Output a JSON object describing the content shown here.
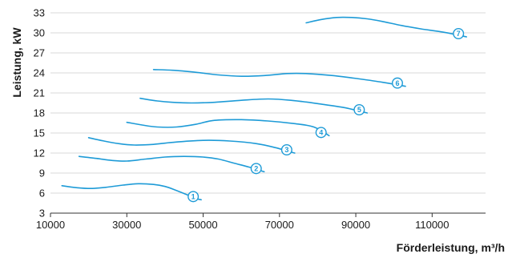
{
  "chart_data": {
    "type": "line",
    "title": "",
    "xlabel": "Förderleistung, m³/h",
    "ylabel": "Leistung, kW",
    "xlim": [
      10000,
      124000
    ],
    "ylim": [
      3,
      33
    ],
    "xticks": [
      10000,
      30000,
      50000,
      70000,
      90000,
      110000
    ],
    "yticks": [
      3,
      6,
      9,
      12,
      15,
      18,
      21,
      24,
      27,
      30,
      33
    ],
    "grid": "horizontal",
    "line_color": "#1e9bd7",
    "series": [
      {
        "name": "1",
        "x": [
          13000,
          17000,
          21000,
          25000,
          29000,
          33000,
          37000,
          40000,
          43000,
          46000,
          48000,
          49500
        ],
        "y": [
          7.1,
          6.8,
          6.7,
          6.9,
          7.2,
          7.4,
          7.3,
          7.0,
          6.4,
          5.7,
          5.2,
          5.0
        ]
      },
      {
        "name": "2",
        "x": [
          17500,
          22000,
          26000,
          30000,
          35000,
          40000,
          45000,
          50000,
          54000,
          58000,
          62000,
          66000
        ],
        "y": [
          11.5,
          11.2,
          10.9,
          10.8,
          11.1,
          11.4,
          11.5,
          11.4,
          11.1,
          10.5,
          9.9,
          9.2
        ]
      },
      {
        "name": "3",
        "x": [
          20000,
          24000,
          28000,
          32000,
          37000,
          42000,
          50000,
          57000,
          64000,
          69000,
          74000
        ],
        "y": [
          14.3,
          13.8,
          13.4,
          13.2,
          13.3,
          13.6,
          13.9,
          13.8,
          13.4,
          12.8,
          12.0
        ]
      },
      {
        "name": "4",
        "x": [
          30000,
          34000,
          38000,
          43000,
          48000,
          53000,
          60000,
          67000,
          74000,
          79000,
          83000
        ],
        "y": [
          16.6,
          16.2,
          15.9,
          15.9,
          16.3,
          16.9,
          17.0,
          16.8,
          16.4,
          15.9,
          14.6
        ]
      },
      {
        "name": "5",
        "x": [
          33500,
          38000,
          42000,
          47000,
          53000,
          60000,
          67000,
          73000,
          80000,
          87000,
          93000
        ],
        "y": [
          20.2,
          19.8,
          19.6,
          19.5,
          19.6,
          19.9,
          20.1,
          19.9,
          19.4,
          18.8,
          18.0
        ]
      },
      {
        "name": "6",
        "x": [
          37000,
          42000,
          48000,
          54000,
          60000,
          66000,
          72000,
          77000,
          84000,
          91000,
          97000,
          103000
        ],
        "y": [
          24.5,
          24.4,
          24.1,
          23.7,
          23.5,
          23.6,
          23.9,
          23.9,
          23.6,
          23.1,
          22.6,
          22.0
        ]
      },
      {
        "name": "7",
        "x": [
          77000,
          81000,
          85000,
          89000,
          93000,
          97000,
          102000,
          107000,
          113000,
          119000
        ],
        "y": [
          31.5,
          32.0,
          32.3,
          32.3,
          32.1,
          31.7,
          31.1,
          30.6,
          30.1,
          29.4
        ]
      }
    ]
  }
}
